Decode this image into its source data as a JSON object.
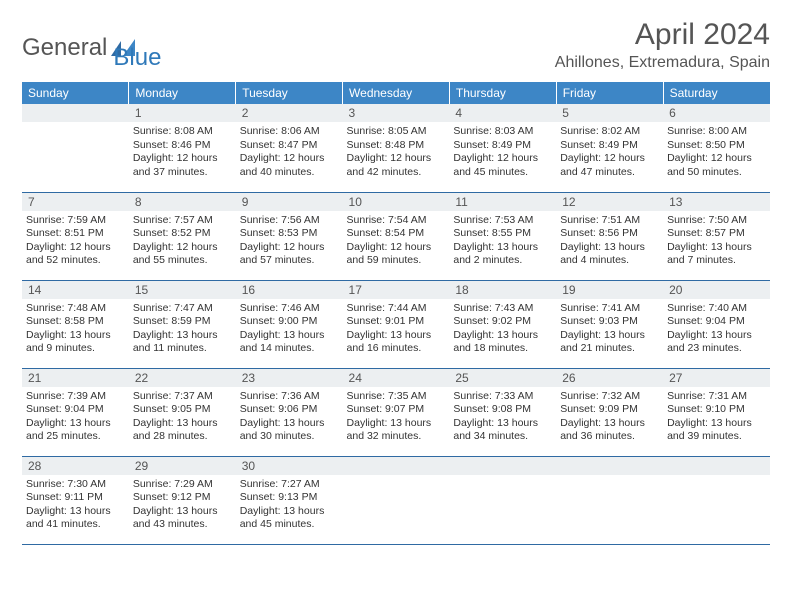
{
  "brand": {
    "left": "General",
    "right": "Blue"
  },
  "title": "April 2024",
  "location": "Ahillones, Extremadura, Spain",
  "colors": {
    "header_bg": "#3d86c6",
    "header_text": "#ffffff",
    "daynum_bg": "#eceff1",
    "border": "#2f6aa3",
    "text": "#333333",
    "title_text": "#555555"
  },
  "weekdays": [
    "Sunday",
    "Monday",
    "Tuesday",
    "Wednesday",
    "Thursday",
    "Friday",
    "Saturday"
  ],
  "weeks": [
    [
      null,
      {
        "n": "1",
        "sr": "8:08 AM",
        "ss": "8:46 PM",
        "dl": "12 hours and 37 minutes."
      },
      {
        "n": "2",
        "sr": "8:06 AM",
        "ss": "8:47 PM",
        "dl": "12 hours and 40 minutes."
      },
      {
        "n": "3",
        "sr": "8:05 AM",
        "ss": "8:48 PM",
        "dl": "12 hours and 42 minutes."
      },
      {
        "n": "4",
        "sr": "8:03 AM",
        "ss": "8:49 PM",
        "dl": "12 hours and 45 minutes."
      },
      {
        "n": "5",
        "sr": "8:02 AM",
        "ss": "8:49 PM",
        "dl": "12 hours and 47 minutes."
      },
      {
        "n": "6",
        "sr": "8:00 AM",
        "ss": "8:50 PM",
        "dl": "12 hours and 50 minutes."
      }
    ],
    [
      {
        "n": "7",
        "sr": "7:59 AM",
        "ss": "8:51 PM",
        "dl": "12 hours and 52 minutes."
      },
      {
        "n": "8",
        "sr": "7:57 AM",
        "ss": "8:52 PM",
        "dl": "12 hours and 55 minutes."
      },
      {
        "n": "9",
        "sr": "7:56 AM",
        "ss": "8:53 PM",
        "dl": "12 hours and 57 minutes."
      },
      {
        "n": "10",
        "sr": "7:54 AM",
        "ss": "8:54 PM",
        "dl": "12 hours and 59 minutes."
      },
      {
        "n": "11",
        "sr": "7:53 AM",
        "ss": "8:55 PM",
        "dl": "13 hours and 2 minutes."
      },
      {
        "n": "12",
        "sr": "7:51 AM",
        "ss": "8:56 PM",
        "dl": "13 hours and 4 minutes."
      },
      {
        "n": "13",
        "sr": "7:50 AM",
        "ss": "8:57 PM",
        "dl": "13 hours and 7 minutes."
      }
    ],
    [
      {
        "n": "14",
        "sr": "7:48 AM",
        "ss": "8:58 PM",
        "dl": "13 hours and 9 minutes."
      },
      {
        "n": "15",
        "sr": "7:47 AM",
        "ss": "8:59 PM",
        "dl": "13 hours and 11 minutes."
      },
      {
        "n": "16",
        "sr": "7:46 AM",
        "ss": "9:00 PM",
        "dl": "13 hours and 14 minutes."
      },
      {
        "n": "17",
        "sr": "7:44 AM",
        "ss": "9:01 PM",
        "dl": "13 hours and 16 minutes."
      },
      {
        "n": "18",
        "sr": "7:43 AM",
        "ss": "9:02 PM",
        "dl": "13 hours and 18 minutes."
      },
      {
        "n": "19",
        "sr": "7:41 AM",
        "ss": "9:03 PM",
        "dl": "13 hours and 21 minutes."
      },
      {
        "n": "20",
        "sr": "7:40 AM",
        "ss": "9:04 PM",
        "dl": "13 hours and 23 minutes."
      }
    ],
    [
      {
        "n": "21",
        "sr": "7:39 AM",
        "ss": "9:04 PM",
        "dl": "13 hours and 25 minutes."
      },
      {
        "n": "22",
        "sr": "7:37 AM",
        "ss": "9:05 PM",
        "dl": "13 hours and 28 minutes."
      },
      {
        "n": "23",
        "sr": "7:36 AM",
        "ss": "9:06 PM",
        "dl": "13 hours and 30 minutes."
      },
      {
        "n": "24",
        "sr": "7:35 AM",
        "ss": "9:07 PM",
        "dl": "13 hours and 32 minutes."
      },
      {
        "n": "25",
        "sr": "7:33 AM",
        "ss": "9:08 PM",
        "dl": "13 hours and 34 minutes."
      },
      {
        "n": "26",
        "sr": "7:32 AM",
        "ss": "9:09 PM",
        "dl": "13 hours and 36 minutes."
      },
      {
        "n": "27",
        "sr": "7:31 AM",
        "ss": "9:10 PM",
        "dl": "13 hours and 39 minutes."
      }
    ],
    [
      {
        "n": "28",
        "sr": "7:30 AM",
        "ss": "9:11 PM",
        "dl": "13 hours and 41 minutes."
      },
      {
        "n": "29",
        "sr": "7:29 AM",
        "ss": "9:12 PM",
        "dl": "13 hours and 43 minutes."
      },
      {
        "n": "30",
        "sr": "7:27 AM",
        "ss": "9:13 PM",
        "dl": "13 hours and 45 minutes."
      },
      null,
      null,
      null,
      null
    ]
  ],
  "labels": {
    "sunrise": "Sunrise: ",
    "sunset": "Sunset: ",
    "daylight": "Daylight: "
  }
}
